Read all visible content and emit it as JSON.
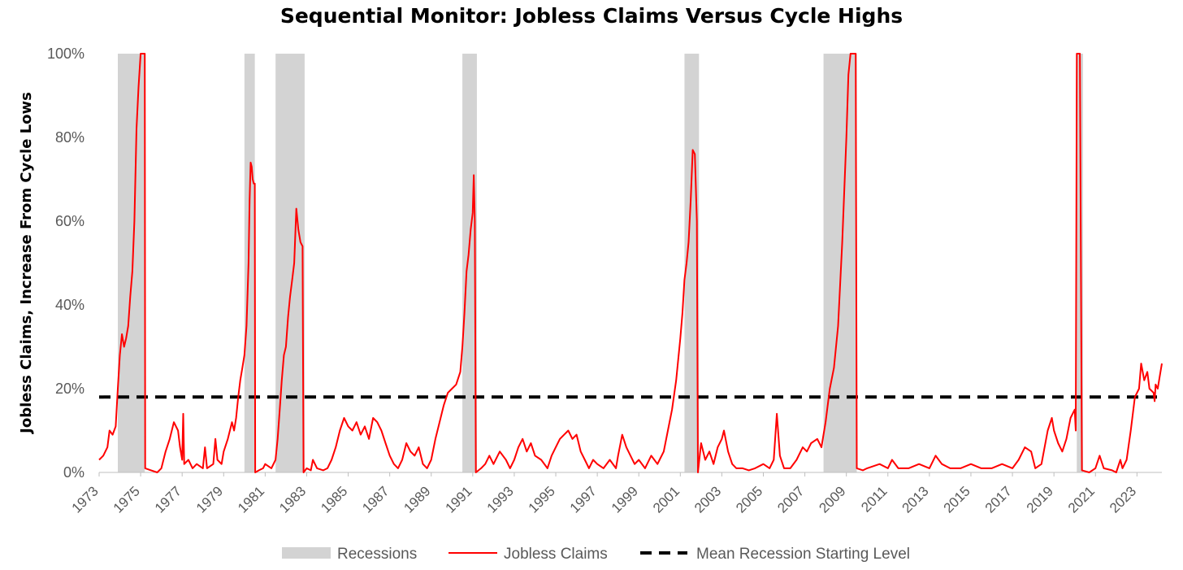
{
  "chart_data": {
    "type": "line",
    "title": "Sequential Monitor: Jobless Claims Versus Cycle Highs",
    "ylabel": "Jobless Claims, Increase From Cycle Lows",
    "xlabel": "",
    "xlim": [
      1973.0,
      2024.2
    ],
    "ylim": [
      0,
      100
    ],
    "y_ticks": [
      0,
      20,
      40,
      60,
      80,
      100
    ],
    "y_tick_labels": [
      "0%",
      "20%",
      "40%",
      "60%",
      "80%",
      "100%"
    ],
    "x_ticks": [
      1973,
      1975,
      1977,
      1979,
      1981,
      1983,
      1985,
      1987,
      1989,
      1991,
      1993,
      1995,
      1997,
      1999,
      2001,
      2003,
      2005,
      2007,
      2009,
      2011,
      2013,
      2015,
      2017,
      2019,
      2021,
      2023
    ],
    "x_tick_labels": [
      "1973",
      "1975",
      "1977",
      "1979",
      "1981",
      "1983",
      "1985",
      "1987",
      "1989",
      "1991",
      "1993",
      "1995",
      "1997",
      "1999",
      "2001",
      "2003",
      "2005",
      "2007",
      "2009",
      "2011",
      "2013",
      "2015",
      "2017",
      "2019",
      "2021",
      "2023"
    ],
    "grid": false,
    "legend_position": "bottom",
    "recessions": {
      "name": "Recessions",
      "color": "#d3d3d3",
      "periods": [
        [
          1973.9,
          1975.2
        ],
        [
          1980.0,
          1980.5
        ],
        [
          1981.5,
          1982.9
        ],
        [
          1990.5,
          1991.2
        ],
        [
          2001.2,
          2001.9
        ],
        [
          2007.9,
          2009.5
        ],
        [
          2020.1,
          2020.4
        ]
      ]
    },
    "series": [
      {
        "name": "Jobless Claims",
        "color": "#ff0000",
        "points": [
          [
            1973.0,
            3
          ],
          [
            1973.2,
            4
          ],
          [
            1973.4,
            6
          ],
          [
            1973.5,
            10
          ],
          [
            1973.65,
            9
          ],
          [
            1973.8,
            11
          ],
          [
            1973.9,
            20
          ],
          [
            1974.0,
            28
          ],
          [
            1974.1,
            33
          ],
          [
            1974.2,
            30
          ],
          [
            1974.3,
            32
          ],
          [
            1974.4,
            35
          ],
          [
            1974.5,
            42
          ],
          [
            1974.6,
            48
          ],
          [
            1974.7,
            60
          ],
          [
            1974.8,
            82
          ],
          [
            1974.9,
            92
          ],
          [
            1975.0,
            100
          ],
          [
            1975.2,
            100
          ],
          [
            1975.22,
            1
          ],
          [
            1975.5,
            0.5
          ],
          [
            1975.8,
            0
          ],
          [
            1976.0,
            1
          ],
          [
            1976.2,
            5
          ],
          [
            1976.4,
            8
          ],
          [
            1976.6,
            12
          ],
          [
            1976.8,
            10
          ],
          [
            1976.9,
            6
          ],
          [
            1977.0,
            3
          ],
          [
            1977.05,
            14
          ],
          [
            1977.1,
            2
          ],
          [
            1977.3,
            3
          ],
          [
            1977.5,
            1
          ],
          [
            1977.7,
            2
          ],
          [
            1978.0,
            1
          ],
          [
            1978.1,
            6
          ],
          [
            1978.2,
            1
          ],
          [
            1978.5,
            2
          ],
          [
            1978.6,
            8
          ],
          [
            1978.7,
            3
          ],
          [
            1978.9,
            2
          ],
          [
            1979.0,
            5
          ],
          [
            1979.2,
            8
          ],
          [
            1979.4,
            12
          ],
          [
            1979.5,
            10
          ],
          [
            1979.6,
            13
          ],
          [
            1979.7,
            18
          ],
          [
            1979.8,
            22
          ],
          [
            1979.9,
            25
          ],
          [
            1980.0,
            28
          ],
          [
            1980.1,
            35
          ],
          [
            1980.2,
            50
          ],
          [
            1980.25,
            65
          ],
          [
            1980.3,
            74
          ],
          [
            1980.35,
            73
          ],
          [
            1980.4,
            70
          ],
          [
            1980.45,
            69
          ],
          [
            1980.5,
            69
          ],
          [
            1980.52,
            0
          ],
          [
            1980.7,
            0.5
          ],
          [
            1980.9,
            1
          ],
          [
            1981.0,
            2
          ],
          [
            1981.3,
            1
          ],
          [
            1981.5,
            3
          ],
          [
            1981.6,
            8
          ],
          [
            1981.7,
            15
          ],
          [
            1981.8,
            22
          ],
          [
            1981.9,
            28
          ],
          [
            1982.0,
            30
          ],
          [
            1982.1,
            37
          ],
          [
            1982.2,
            42
          ],
          [
            1982.3,
            46
          ],
          [
            1982.4,
            50
          ],
          [
            1982.5,
            63
          ],
          [
            1982.6,
            58
          ],
          [
            1982.7,
            55
          ],
          [
            1982.8,
            54
          ],
          [
            1982.85,
            0
          ],
          [
            1983.0,
            1
          ],
          [
            1983.2,
            0.5
          ],
          [
            1983.3,
            3
          ],
          [
            1983.5,
            1
          ],
          [
            1983.8,
            0.5
          ],
          [
            1984.0,
            1
          ],
          [
            1984.2,
            3
          ],
          [
            1984.4,
            6
          ],
          [
            1984.6,
            10
          ],
          [
            1984.8,
            13
          ],
          [
            1985.0,
            11
          ],
          [
            1985.2,
            10
          ],
          [
            1985.4,
            12
          ],
          [
            1985.6,
            9
          ],
          [
            1985.8,
            11
          ],
          [
            1986.0,
            8
          ],
          [
            1986.2,
            13
          ],
          [
            1986.4,
            12
          ],
          [
            1986.6,
            10
          ],
          [
            1986.8,
            7
          ],
          [
            1987.0,
            4
          ],
          [
            1987.2,
            2
          ],
          [
            1987.4,
            1
          ],
          [
            1987.6,
            3
          ],
          [
            1987.8,
            7
          ],
          [
            1988.0,
            5
          ],
          [
            1988.2,
            4
          ],
          [
            1988.4,
            6
          ],
          [
            1988.6,
            2
          ],
          [
            1988.8,
            1
          ],
          [
            1989.0,
            3
          ],
          [
            1989.2,
            8
          ],
          [
            1989.4,
            12
          ],
          [
            1989.6,
            16
          ],
          [
            1989.8,
            19
          ],
          [
            1990.0,
            20
          ],
          [
            1990.2,
            21
          ],
          [
            1990.4,
            24
          ],
          [
            1990.5,
            30
          ],
          [
            1990.6,
            38
          ],
          [
            1990.7,
            48
          ],
          [
            1990.8,
            52
          ],
          [
            1990.9,
            58
          ],
          [
            1991.0,
            62
          ],
          [
            1991.05,
            71
          ],
          [
            1991.1,
            60
          ],
          [
            1991.15,
            0
          ],
          [
            1991.4,
            1
          ],
          [
            1991.6,
            2
          ],
          [
            1991.8,
            4
          ],
          [
            1992.0,
            2
          ],
          [
            1992.3,
            5
          ],
          [
            1992.6,
            3
          ],
          [
            1992.8,
            1
          ],
          [
            1993.0,
            3
          ],
          [
            1993.2,
            6
          ],
          [
            1993.4,
            8
          ],
          [
            1993.6,
            5
          ],
          [
            1993.8,
            7
          ],
          [
            1994.0,
            4
          ],
          [
            1994.3,
            3
          ],
          [
            1994.6,
            1
          ],
          [
            1994.8,
            4
          ],
          [
            1995.0,
            6
          ],
          [
            1995.2,
            8
          ],
          [
            1995.4,
            9
          ],
          [
            1995.6,
            10
          ],
          [
            1995.8,
            8
          ],
          [
            1996.0,
            9
          ],
          [
            1996.2,
            5
          ],
          [
            1996.4,
            3
          ],
          [
            1996.6,
            1
          ],
          [
            1996.8,
            3
          ],
          [
            1997.0,
            2
          ],
          [
            1997.3,
            1
          ],
          [
            1997.6,
            3
          ],
          [
            1997.9,
            1
          ],
          [
            1998.0,
            4
          ],
          [
            1998.2,
            9
          ],
          [
            1998.4,
            6
          ],
          [
            1998.6,
            4
          ],
          [
            1998.8,
            2
          ],
          [
            1999.0,
            3
          ],
          [
            1999.3,
            1
          ],
          [
            1999.6,
            4
          ],
          [
            1999.9,
            2
          ],
          [
            2000.0,
            3
          ],
          [
            2000.2,
            5
          ],
          [
            2000.4,
            10
          ],
          [
            2000.6,
            15
          ],
          [
            2000.8,
            22
          ],
          [
            2001.0,
            32
          ],
          [
            2001.1,
            38
          ],
          [
            2001.2,
            46
          ],
          [
            2001.3,
            50
          ],
          [
            2001.4,
            55
          ],
          [
            2001.5,
            65
          ],
          [
            2001.6,
            77
          ],
          [
            2001.7,
            76
          ],
          [
            2001.8,
            60
          ],
          [
            2001.85,
            0
          ],
          [
            2002.0,
            7
          ],
          [
            2002.2,
            3
          ],
          [
            2002.4,
            5
          ],
          [
            2002.6,
            2
          ],
          [
            2002.8,
            6
          ],
          [
            2003.0,
            8
          ],
          [
            2003.1,
            10
          ],
          [
            2003.3,
            5
          ],
          [
            2003.5,
            2
          ],
          [
            2003.7,
            1
          ],
          [
            2004.0,
            1
          ],
          [
            2004.3,
            0.5
          ],
          [
            2004.6,
            1
          ],
          [
            2005.0,
            2
          ],
          [
            2005.3,
            1
          ],
          [
            2005.5,
            3
          ],
          [
            2005.65,
            14
          ],
          [
            2005.8,
            4
          ],
          [
            2006.0,
            1
          ],
          [
            2006.3,
            1
          ],
          [
            2006.6,
            3
          ],
          [
            2006.9,
            6
          ],
          [
            2007.1,
            5
          ],
          [
            2007.3,
            7
          ],
          [
            2007.6,
            8
          ],
          [
            2007.8,
            6
          ],
          [
            2008.0,
            12
          ],
          [
            2008.2,
            20
          ],
          [
            2008.4,
            25
          ],
          [
            2008.6,
            35
          ],
          [
            2008.8,
            55
          ],
          [
            2009.0,
            80
          ],
          [
            2009.1,
            95
          ],
          [
            2009.2,
            100
          ],
          [
            2009.45,
            100
          ],
          [
            2009.5,
            1
          ],
          [
            2009.8,
            0.5
          ],
          [
            2010.0,
            1
          ],
          [
            2010.3,
            1.5
          ],
          [
            2010.6,
            2
          ],
          [
            2011.0,
            1
          ],
          [
            2011.2,
            3
          ],
          [
            2011.5,
            1
          ],
          [
            2012.0,
            1
          ],
          [
            2012.5,
            2
          ],
          [
            2013.0,
            1
          ],
          [
            2013.3,
            4
          ],
          [
            2013.6,
            2
          ],
          [
            2014.0,
            1
          ],
          [
            2014.5,
            1
          ],
          [
            2015.0,
            2
          ],
          [
            2015.5,
            1
          ],
          [
            2016.0,
            1
          ],
          [
            2016.5,
            2
          ],
          [
            2017.0,
            1
          ],
          [
            2017.3,
            3
          ],
          [
            2017.6,
            6
          ],
          [
            2017.9,
            5
          ],
          [
            2018.1,
            1
          ],
          [
            2018.4,
            2
          ],
          [
            2018.7,
            10
          ],
          [
            2018.9,
            13
          ],
          [
            2019.0,
            10
          ],
          [
            2019.2,
            7
          ],
          [
            2019.4,
            5
          ],
          [
            2019.6,
            8
          ],
          [
            2019.8,
            13
          ],
          [
            2020.0,
            15
          ],
          [
            2020.05,
            10
          ],
          [
            2020.1,
            100
          ],
          [
            2020.25,
            100
          ],
          [
            2020.35,
            0.5
          ],
          [
            2020.7,
            0
          ],
          [
            2021.0,
            1
          ],
          [
            2021.2,
            4
          ],
          [
            2021.4,
            1
          ],
          [
            2021.8,
            0.5
          ],
          [
            2022.0,
            0
          ],
          [
            2022.2,
            3
          ],
          [
            2022.3,
            1
          ],
          [
            2022.5,
            3
          ],
          [
            2022.7,
            10
          ],
          [
            2022.9,
            18
          ],
          [
            2023.1,
            20
          ],
          [
            2023.2,
            26
          ],
          [
            2023.35,
            22
          ],
          [
            2023.5,
            24
          ],
          [
            2023.6,
            20
          ],
          [
            2023.8,
            19
          ],
          [
            2023.85,
            17
          ],
          [
            2023.9,
            21
          ],
          [
            2024.0,
            20
          ],
          [
            2024.1,
            23
          ],
          [
            2024.2,
            26
          ]
        ]
      },
      {
        "name": "Mean Recession Starting Level",
        "color": "#000000",
        "dashed": true,
        "value": 18
      }
    ]
  }
}
